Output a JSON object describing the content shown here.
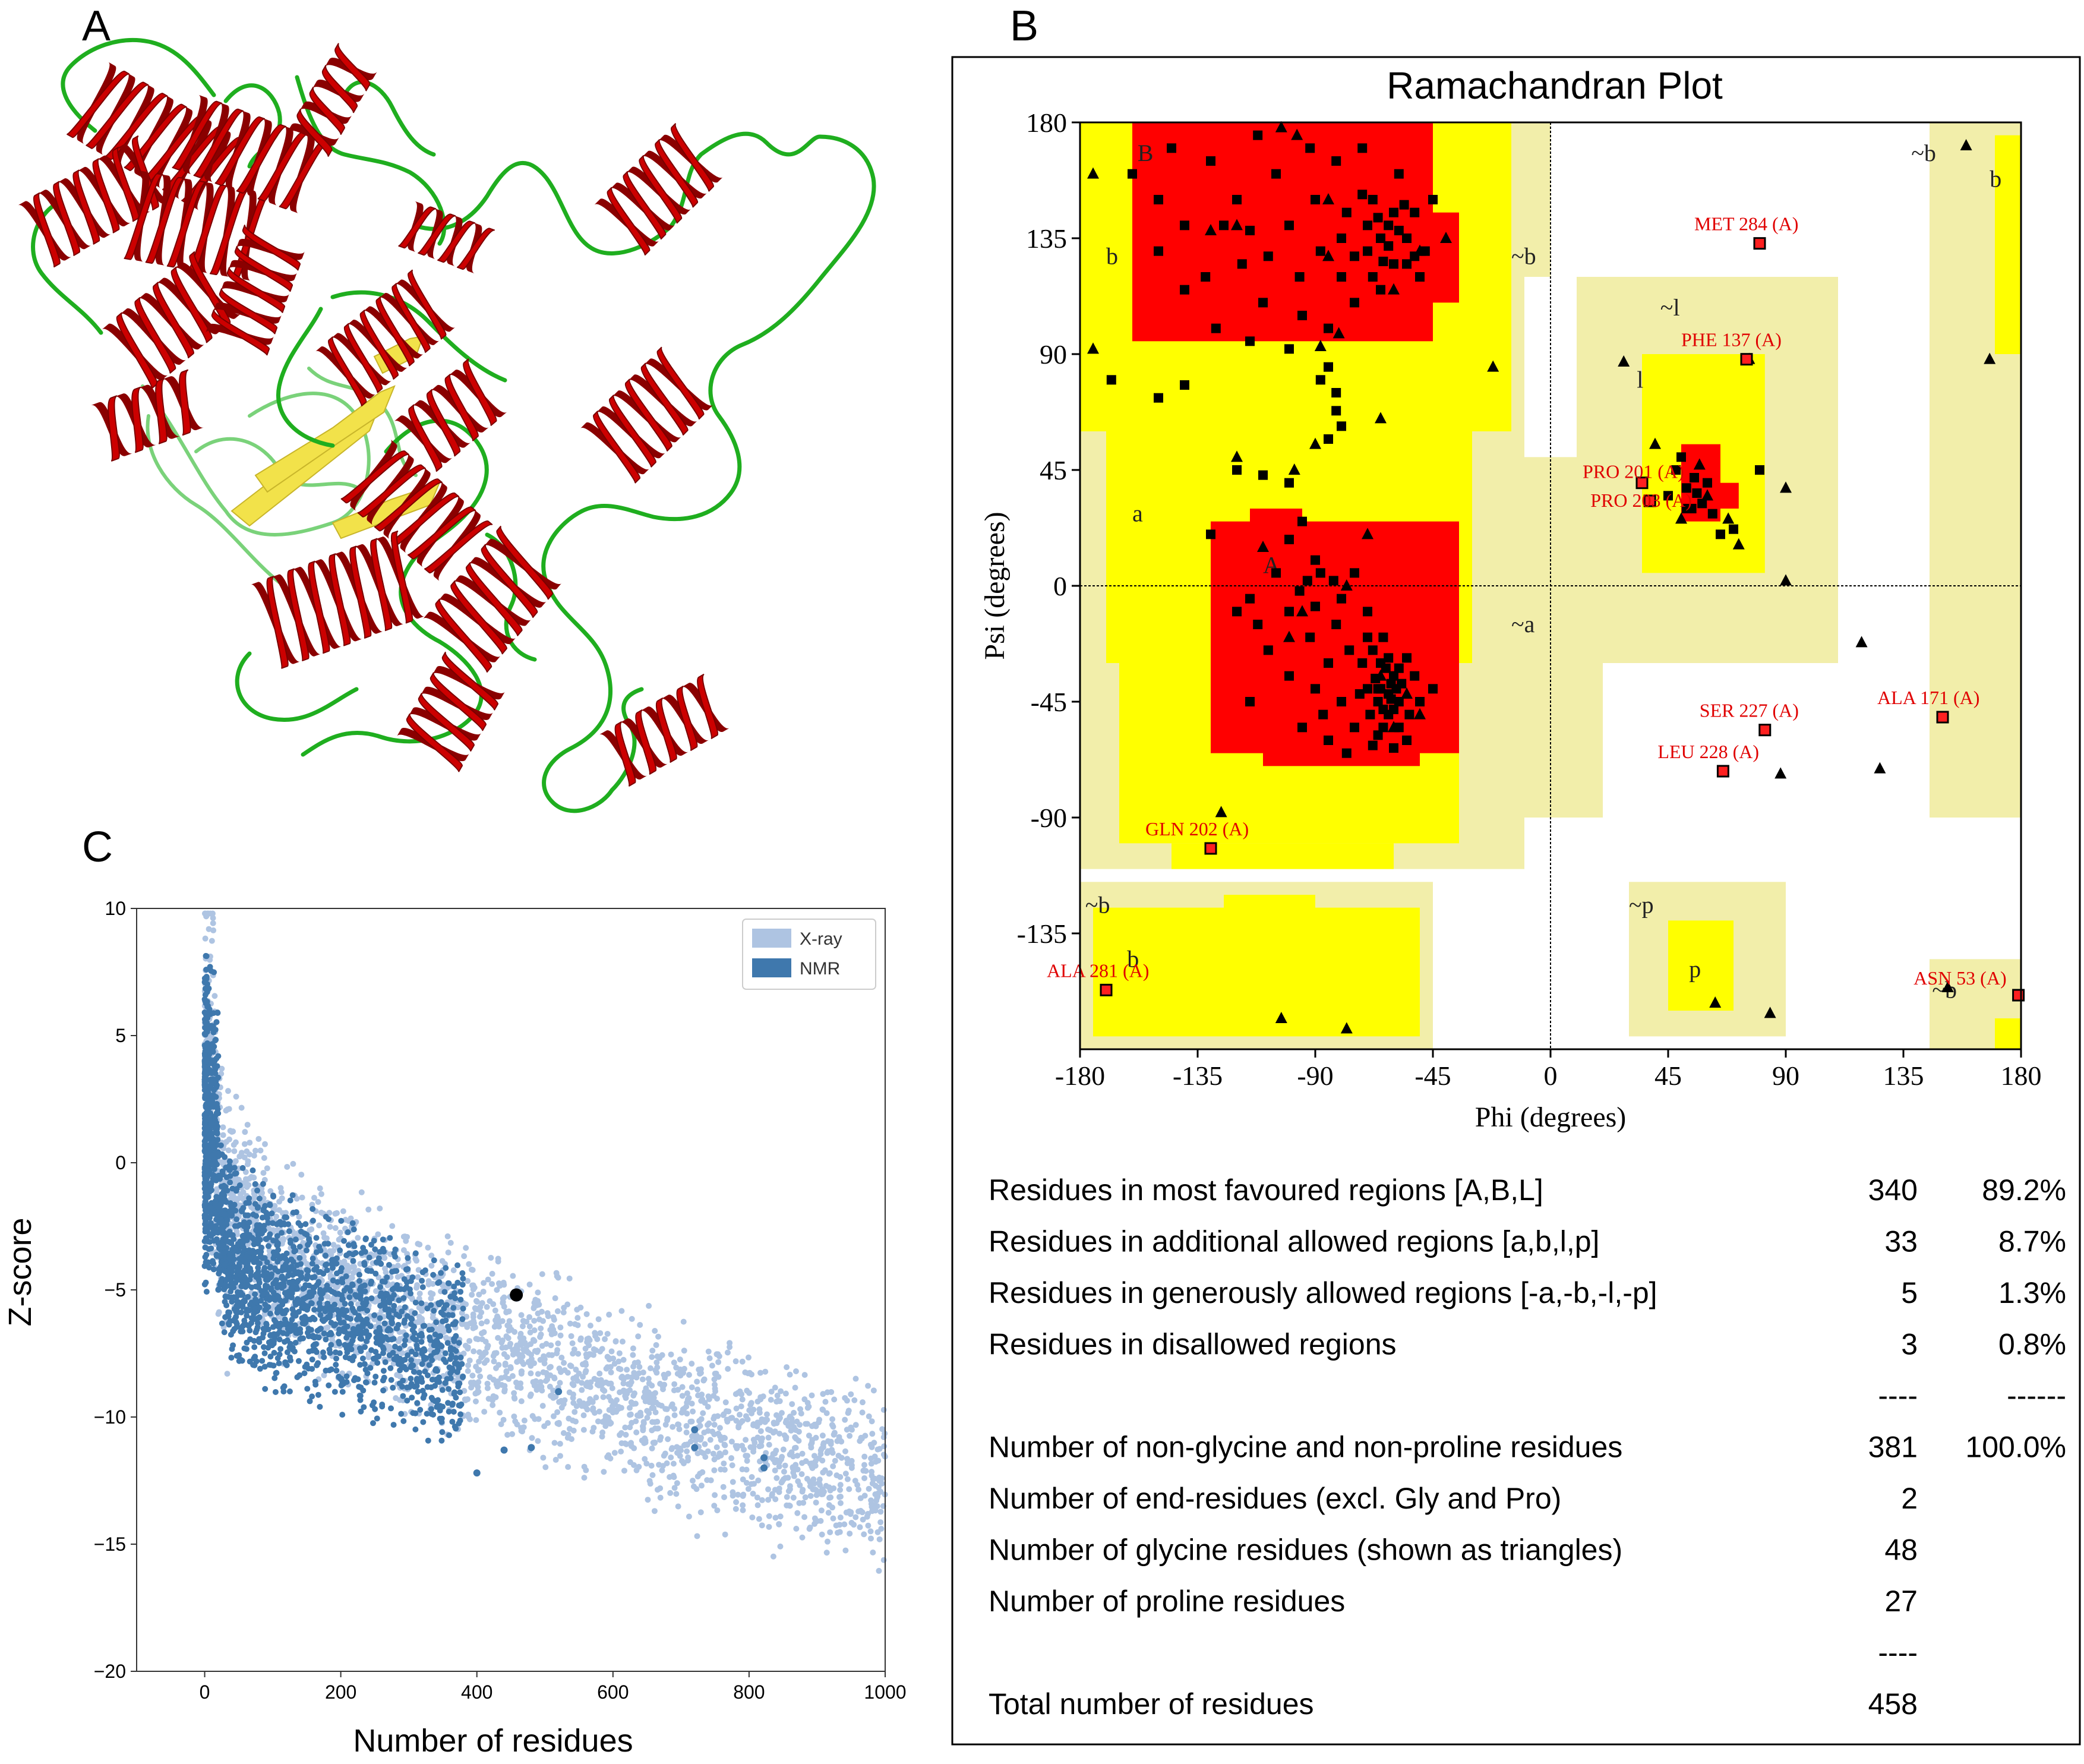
{
  "panels": {
    "a": "A",
    "b": "B",
    "c": "C"
  },
  "colors": {
    "helix": "#cc0000",
    "helix_dark": "#8a0000",
    "coil": "#1fae1f",
    "coil_light": "#7ad27a",
    "sheet": "#f2e24a",
    "core": "#ff0000",
    "allowed": "#ffff00",
    "generous": "#f2eeaa",
    "outer": "#fffccc",
    "xray": "#aec4e2",
    "nmr": "#3f78ad",
    "point": "#000000",
    "flag": "#ff2020"
  },
  "chart_data": [
    {
      "type": "scatter",
      "title": "Ramachandran Plot",
      "xlabel": "Phi (degrees)",
      "ylabel": "Psi (degrees)",
      "xlim": [
        -180,
        180
      ],
      "ylim": [
        -180,
        180
      ],
      "xticks": [
        -180,
        -135,
        -90,
        -45,
        0,
        45,
        90,
        135,
        180
      ],
      "yticks": [
        180,
        135,
        90,
        45,
        0,
        -45,
        -90,
        -135
      ],
      "region_labels": [
        {
          "text": "B",
          "phi": -158,
          "psi": 165
        },
        {
          "text": "b",
          "phi": -170,
          "psi": 125
        },
        {
          "text": "~b",
          "phi": -15,
          "psi": 125
        },
        {
          "text": "~b",
          "phi": 138,
          "psi": 165
        },
        {
          "text": "b",
          "phi": 168,
          "psi": 155
        },
        {
          "text": "a",
          "phi": -160,
          "psi": 25
        },
        {
          "text": "A",
          "phi": -110,
          "psi": 5
        },
        {
          "text": "~a",
          "phi": -15,
          "psi": -18
        },
        {
          "text": "~l",
          "phi": 42,
          "psi": 105
        },
        {
          "text": "l",
          "phi": 33,
          "psi": 77
        },
        {
          "text": "~b",
          "phi": -178,
          "psi": -127
        },
        {
          "text": "b",
          "phi": -162,
          "psi": -148
        },
        {
          "text": "~p",
          "phi": 30,
          "psi": -127
        },
        {
          "text": "p",
          "phi": 53,
          "psi": -152
        },
        {
          "text": "~b",
          "phi": 146,
          "psi": -160
        }
      ],
      "flagged_residues": [
        {
          "label": "MET 284 (A)",
          "phi": 80,
          "psi": 133
        },
        {
          "label": "PHE 137 (A)",
          "phi": 75,
          "psi": 88
        },
        {
          "label": "PRO 201 (A)",
          "phi": 35,
          "psi": 40
        },
        {
          "label": "PRO 203 (A)",
          "phi": 38,
          "psi": 33
        },
        {
          "label": "SER 227 (A)",
          "phi": 82,
          "psi": -56
        },
        {
          "label": "LEU 228 (A)",
          "phi": 66,
          "psi": -72
        },
        {
          "label": "ALA 171 (A)",
          "phi": 150,
          "psi": -51
        },
        {
          "label": "GLN 202 (A)",
          "phi": -130,
          "psi": -102
        },
        {
          "label": "ALA 281 (A)",
          "phi": -170,
          "psi": -157
        },
        {
          "label": "ASN 53 (A)",
          "phi": 179,
          "psi": -159
        }
      ],
      "glycine_points": [
        [
          -103,
          178
        ],
        [
          -175,
          160
        ],
        [
          -120,
          140
        ],
        [
          -85,
          128
        ],
        [
          -22,
          85
        ],
        [
          -175,
          92
        ],
        [
          -130,
          138
        ],
        [
          -97,
          175
        ],
        [
          -81,
          98
        ],
        [
          -88,
          93
        ],
        [
          -55,
          -42
        ],
        [
          -110,
          15
        ],
        [
          -70,
          20
        ],
        [
          -65,
          -35
        ],
        [
          -126,
          -88
        ],
        [
          -103,
          -168
        ],
        [
          -78,
          -172
        ],
        [
          28,
          87
        ],
        [
          76,
          88
        ],
        [
          57,
          47
        ],
        [
          90,
          38
        ],
        [
          68,
          26
        ],
        [
          50,
          26
        ],
        [
          90,
          2
        ],
        [
          119,
          -22
        ],
        [
          88,
          -73
        ],
        [
          126,
          -71
        ],
        [
          63,
          -162
        ],
        [
          152,
          -156
        ],
        [
          159,
          171
        ],
        [
          168,
          88
        ],
        [
          -90,
          55
        ],
        [
          -120,
          50
        ],
        [
          -65,
          65
        ],
        [
          -60,
          115
        ],
        [
          -85,
          150
        ],
        [
          -50,
          130
        ],
        [
          -40,
          135
        ],
        [
          -100,
          -20
        ],
        [
          -78,
          0
        ],
        [
          -60,
          -55
        ],
        [
          -95,
          -10
        ],
        [
          -50,
          -50
        ],
        [
          40,
          55
        ],
        [
          60,
          35
        ],
        [
          72,
          16
        ],
        [
          84,
          -166
        ],
        [
          -98,
          45
        ]
      ],
      "favoured_points": [
        [
          -160,
          160
        ],
        [
          -145,
          170
        ],
        [
          -150,
          150
        ],
        [
          -140,
          140
        ],
        [
          -130,
          165
        ],
        [
          -120,
          150
        ],
        [
          -118,
          125
        ],
        [
          -110,
          110
        ],
        [
          -105,
          160
        ],
        [
          -100,
          140
        ],
        [
          -96,
          120
        ],
        [
          -92,
          170
        ],
        [
          -90,
          150
        ],
        [
          -88,
          130
        ],
        [
          -85,
          100
        ],
        [
          -82,
          165
        ],
        [
          -80,
          120
        ],
        [
          -78,
          145
        ],
        [
          -75,
          110
        ],
        [
          -72,
          170
        ],
        [
          -70,
          130
        ],
        [
          -68,
          150
        ],
        [
          -65,
          115
        ],
        [
          -62,
          140
        ],
        [
          -60,
          125
        ],
        [
          -58,
          160
        ],
        [
          -55,
          135
        ],
        [
          -52,
          145
        ],
        [
          -50,
          120
        ],
        [
          -48,
          130
        ],
        [
          -45,
          150
        ],
        [
          -65,
          135
        ],
        [
          -60,
          145
        ],
        [
          -70,
          140
        ],
        [
          -75,
          128
        ],
        [
          -55,
          125
        ],
        [
          -68,
          120
        ],
        [
          -62,
          132
        ],
        [
          -58,
          138
        ],
        [
          -72,
          152
        ],
        [
          -66,
          143
        ],
        [
          -80,
          135
        ],
        [
          -52,
          128
        ],
        [
          -64,
          126
        ],
        [
          -56,
          148
        ],
        [
          -140,
          115
        ],
        [
          -128,
          100
        ],
        [
          -132,
          120
        ],
        [
          -150,
          130
        ],
        [
          -115,
          95
        ],
        [
          -100,
          92
        ],
        [
          -95,
          105
        ],
        [
          -115,
          138
        ],
        [
          -108,
          128
        ],
        [
          -125,
          140
        ],
        [
          -112,
          175
        ],
        [
          -85,
          85
        ],
        [
          -82,
          75
        ],
        [
          -80,
          62
        ],
        [
          -85,
          57
        ],
        [
          -82,
          68
        ],
        [
          -88,
          80
        ],
        [
          -140,
          78
        ],
        [
          -150,
          73
        ],
        [
          -168,
          80
        ],
        [
          -130,
          20
        ],
        [
          -120,
          45
        ],
        [
          -110,
          43
        ],
        [
          -100,
          40
        ],
        [
          -95,
          25
        ],
        [
          -90,
          10
        ],
        [
          -105,
          5
        ],
        [
          -115,
          -5
        ],
        [
          -100,
          -10
        ],
        [
          -92,
          -20
        ],
        [
          -85,
          -30
        ],
        [
          -80,
          -5
        ],
        [
          -75,
          5
        ],
        [
          -88,
          5
        ],
        [
          -70,
          -10
        ],
        [
          -68,
          -25
        ],
        [
          -65,
          -40
        ],
        [
          -62,
          -50
        ],
        [
          -60,
          -35
        ],
        [
          -58,
          -45
        ],
        [
          -55,
          -28
        ],
        [
          -70,
          -40
        ],
        [
          -72,
          -30
        ],
        [
          -66,
          -45
        ],
        [
          -64,
          -55
        ],
        [
          -62,
          -42
        ],
        [
          -60,
          -48
        ],
        [
          -67,
          -36
        ],
        [
          -63,
          -32
        ],
        [
          -59,
          -40
        ],
        [
          -61,
          -38
        ],
        [
          -65,
          -30
        ],
        [
          -57,
          -38
        ],
        [
          -69,
          -50
        ],
        [
          -70,
          -20
        ],
        [
          -75,
          -55
        ],
        [
          -80,
          -45
        ],
        [
          -85,
          -60
        ],
        [
          -78,
          -65
        ],
        [
          -68,
          -62
        ],
        [
          -55,
          -60
        ],
        [
          -50,
          -45
        ],
        [
          -45,
          -40
        ],
        [
          -58,
          -55
        ],
        [
          -73,
          -42
        ],
        [
          -90,
          -40
        ],
        [
          -95,
          -55
        ],
        [
          -100,
          -35
        ],
        [
          -108,
          -25
        ],
        [
          -112,
          -15
        ],
        [
          -82,
          -15
        ],
        [
          -77,
          -25
        ],
        [
          -87,
          -50
        ],
        [
          -64,
          -20
        ],
        [
          -66,
          -58
        ],
        [
          -60,
          -63
        ],
        [
          -54,
          -50
        ],
        [
          -52,
          -35
        ],
        [
          -100,
          18
        ],
        [
          -93,
          2
        ],
        [
          -83,
          2
        ],
        [
          -96,
          -2
        ],
        [
          -90,
          -8
        ],
        [
          -120,
          -10
        ],
        [
          -115,
          -45
        ],
        [
          -62,
          -28
        ],
        [
          -58,
          -32
        ],
        [
          -64,
          -48
        ],
        [
          -66,
          -40
        ],
        [
          -61,
          -44
        ],
        [
          50,
          50
        ],
        [
          55,
          42
        ],
        [
          60,
          40
        ],
        [
          48,
          45
        ],
        [
          52,
          38
        ],
        [
          58,
          32
        ],
        [
          62,
          28
        ],
        [
          65,
          20
        ],
        [
          45,
          35
        ],
        [
          52,
          30
        ],
        [
          70,
          22
        ],
        [
          80,
          45
        ],
        [
          54,
          30
        ],
        [
          56,
          36
        ]
      ]
    },
    {
      "type": "scatter",
      "xlabel": "Number of residues",
      "ylabel": "Z-score",
      "xlim": [
        -100,
        1000
      ],
      "ylim": [
        -20,
        10
      ],
      "xticks": [
        0,
        200,
        400,
        600,
        800,
        1000
      ],
      "yticks": [
        10,
        5,
        0,
        -5,
        -10,
        -15,
        -20
      ],
      "legend": [
        "X-ray",
        "NMR"
      ],
      "legend_position": "top-right",
      "series": [
        {
          "name": "X-ray",
          "trend": [
            [
              0,
              0
            ],
            [
              100,
              -3.5
            ],
            [
              200,
              -5
            ],
            [
              400,
              -7
            ],
            [
              600,
              -9
            ],
            [
              800,
              -11
            ],
            [
              1000,
              -12.5
            ]
          ]
        },
        {
          "name": "NMR",
          "trend": [
            [
              0,
              -2
            ],
            [
              50,
              -4
            ],
            [
              100,
              -5
            ],
            [
              200,
              -6
            ],
            [
              300,
              -7
            ],
            [
              380,
              -8
            ]
          ]
        }
      ],
      "highlight": {
        "x": 458,
        "y": -5.2
      }
    }
  ],
  "stats_table": {
    "rows": [
      {
        "label": "Residues in most favoured regions [A,B,L]",
        "count": "340",
        "pct": "89.2%"
      },
      {
        "label": "Residues in additional allowed regions [a,b,l,p]",
        "count": "33",
        "pct": "8.7%"
      },
      {
        "label": "Residues in generously allowed regions [-a,-b,-l,-p]",
        "count": "5",
        "pct": "1.3%"
      },
      {
        "label": "Residues in disallowed regions",
        "count": "3",
        "pct": "0.8%"
      },
      {
        "label": "",
        "count": "----",
        "pct": "------"
      },
      {
        "label": "Number of non-glycine and non-proline residues",
        "count": "381",
        "pct": "100.0%"
      },
      {
        "label": "Number of end-residues (excl. Gly and Pro)",
        "count": "2",
        "pct": ""
      },
      {
        "label": "Number of glycine residues (shown as triangles)",
        "count": "48",
        "pct": ""
      },
      {
        "label": "Number of proline residues",
        "count": "27",
        "pct": ""
      },
      {
        "label": "",
        "count": "----",
        "pct": ""
      },
      {
        "label": "Total number of residues",
        "count": "458",
        "pct": ""
      }
    ]
  }
}
